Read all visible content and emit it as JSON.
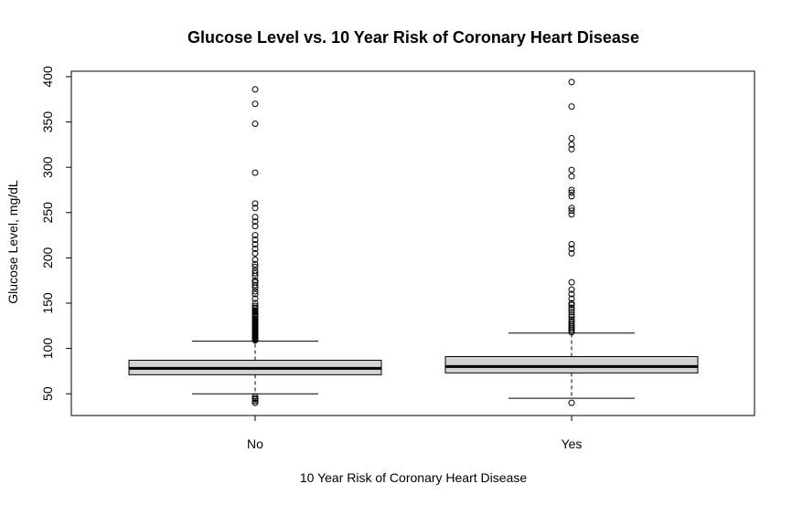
{
  "chart_data": {
    "type": "boxplot",
    "title": "Glucose Level vs. 10 Year Risk of Coronary Heart Disease",
    "xlabel": "10 Year Risk of Coronary Heart Disease",
    "ylabel": "Glucose Level, mg/dL",
    "categories": [
      "No",
      "Yes"
    ],
    "ylim": [
      26,
      406
    ],
    "yticks": [
      50,
      100,
      150,
      200,
      250,
      300,
      350,
      400
    ],
    "box_fill": "#d3d3d3",
    "grid": false,
    "groups": [
      {
        "name": "No",
        "min": 50,
        "q1": 71,
        "median": 78,
        "q3": 87,
        "max": 108,
        "outliers": [
          40,
          42,
          44,
          45,
          47,
          109,
          110,
          111,
          112,
          113,
          114,
          115,
          116,
          117,
          118,
          119,
          120,
          121,
          122,
          123,
          124,
          125,
          126,
          127,
          128,
          129,
          130,
          131,
          132,
          133,
          135,
          136,
          137,
          138,
          140,
          141,
          142,
          144,
          145,
          147,
          150,
          155,
          160,
          163,
          167,
          170,
          173,
          175,
          180,
          183,
          186,
          190,
          193,
          198,
          205,
          210,
          215,
          220,
          225,
          235,
          240,
          245,
          255,
          260,
          294,
          348,
          370,
          386
        ]
      },
      {
        "name": "Yes",
        "min": 45,
        "q1": 73,
        "median": 80,
        "q3": 91,
        "max": 117,
        "outliers": [
          40,
          118,
          120,
          122,
          124,
          126,
          128,
          130,
          132,
          135,
          137,
          140,
          143,
          145,
          148,
          150,
          155,
          160,
          165,
          173,
          205,
          210,
          215,
          248,
          252,
          255,
          268,
          272,
          275,
          290,
          297,
          320,
          325,
          332,
          367,
          394
        ]
      }
    ]
  }
}
